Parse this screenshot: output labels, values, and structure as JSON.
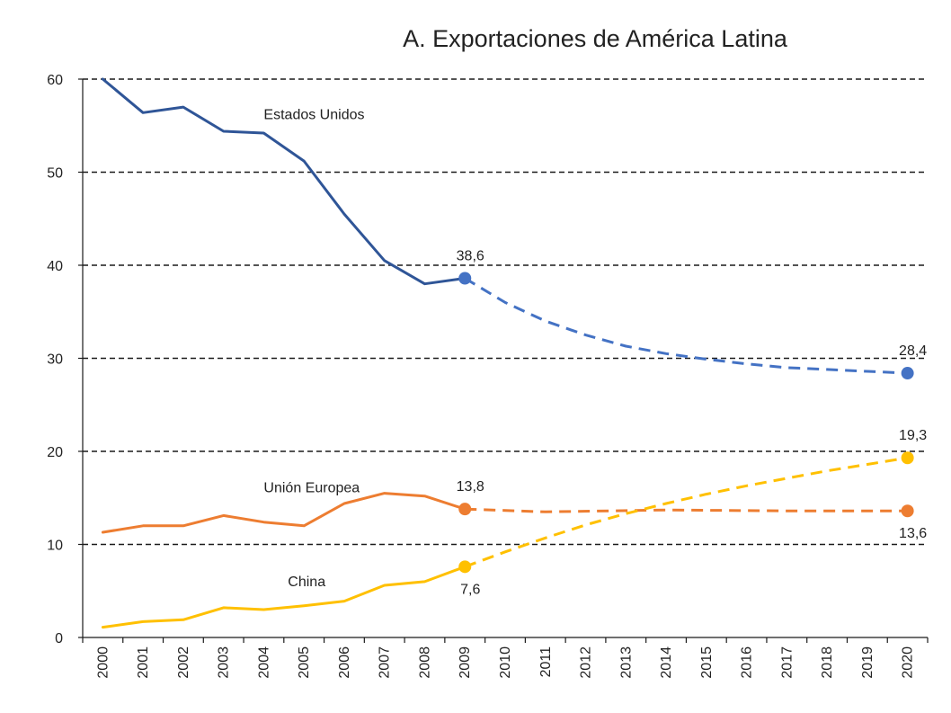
{
  "chart_data": {
    "type": "line",
    "title": "A. Exportaciones de América Latina",
    "x": [
      2000,
      2001,
      2002,
      2003,
      2004,
      2005,
      2006,
      2007,
      2008,
      2009,
      2010,
      2011,
      2012,
      2013,
      2014,
      2015,
      2016,
      2017,
      2018,
      2019,
      2020
    ],
    "ylim": [
      0,
      60
    ],
    "yticks": [
      0,
      10,
      20,
      30,
      40,
      50,
      60
    ],
    "grid": true,
    "series": [
      {
        "name": "Estados Unidos",
        "color": "#2f5597",
        "marker_color": "#4472c4",
        "actual": [
          [
            2000,
            60.0
          ],
          [
            2001,
            56.4
          ],
          [
            2002,
            57.0
          ],
          [
            2003,
            54.4
          ],
          [
            2004,
            54.2
          ],
          [
            2005,
            51.2
          ],
          [
            2006,
            45.5
          ],
          [
            2007,
            40.5
          ],
          [
            2008,
            38.0
          ],
          [
            2009,
            38.6
          ]
        ],
        "projection": [
          [
            2009,
            38.6
          ],
          [
            2010,
            36.0
          ],
          [
            2011,
            34.0
          ],
          [
            2012,
            32.5
          ],
          [
            2013,
            31.3
          ],
          [
            2014,
            30.5
          ],
          [
            2015,
            29.9
          ],
          [
            2016,
            29.4
          ],
          [
            2017,
            29.0
          ],
          [
            2018,
            28.8
          ],
          [
            2019,
            28.6
          ],
          [
            2020,
            28.4
          ]
        ],
        "labels": [
          {
            "x": 2009,
            "y": 38.6,
            "text": "38,6",
            "pos": "above"
          },
          {
            "x": 2020,
            "y": 28.4,
            "text": "28,4",
            "pos": "above"
          }
        ]
      },
      {
        "name": "Unión Europea",
        "color": "#ed7d31",
        "marker_color": "#ed7d31",
        "actual": [
          [
            2000,
            11.3
          ],
          [
            2001,
            12.0
          ],
          [
            2002,
            12.0
          ],
          [
            2003,
            13.1
          ],
          [
            2004,
            12.4
          ],
          [
            2005,
            12.0
          ],
          [
            2006,
            14.4
          ],
          [
            2007,
            15.5
          ],
          [
            2008,
            15.2
          ],
          [
            2009,
            13.8
          ]
        ],
        "projection": [
          [
            2009,
            13.8
          ],
          [
            2011,
            13.5
          ],
          [
            2014,
            13.7
          ],
          [
            2017,
            13.6
          ],
          [
            2020,
            13.6
          ]
        ],
        "labels": [
          {
            "x": 2009,
            "y": 13.8,
            "text": "13,8",
            "pos": "above"
          },
          {
            "x": 2020,
            "y": 13.6,
            "text": "13,6",
            "pos": "below"
          }
        ]
      },
      {
        "name": "China",
        "color": "#ffc000",
        "marker_color": "#ffc000",
        "actual": [
          [
            2000,
            1.1
          ],
          [
            2001,
            1.7
          ],
          [
            2002,
            1.9
          ],
          [
            2003,
            3.2
          ],
          [
            2004,
            3.0
          ],
          [
            2005,
            3.4
          ],
          [
            2006,
            3.9
          ],
          [
            2007,
            5.6
          ],
          [
            2008,
            6.0
          ],
          [
            2009,
            7.6
          ]
        ],
        "projection": [
          [
            2009,
            7.6
          ],
          [
            2010,
            9.2
          ],
          [
            2011,
            10.7
          ],
          [
            2012,
            12.1
          ],
          [
            2013,
            13.3
          ],
          [
            2014,
            14.4
          ],
          [
            2015,
            15.4
          ],
          [
            2016,
            16.3
          ],
          [
            2017,
            17.1
          ],
          [
            2018,
            17.9
          ],
          [
            2019,
            18.6
          ],
          [
            2020,
            19.3
          ]
        ],
        "labels": [
          {
            "x": 2009,
            "y": 7.6,
            "text": "7,6",
            "pos": "below"
          },
          {
            "x": 2020,
            "y": 19.3,
            "text": "19,3",
            "pos": "above"
          }
        ]
      }
    ],
    "series_labels": [
      {
        "text": "Estados Unidos",
        "x": 2004.0,
        "y": 55.7
      },
      {
        "text": "Unión Europea",
        "x": 2004.0,
        "y": 15.6
      },
      {
        "text": "China",
        "x": 2004.6,
        "y": 5.5
      }
    ]
  }
}
